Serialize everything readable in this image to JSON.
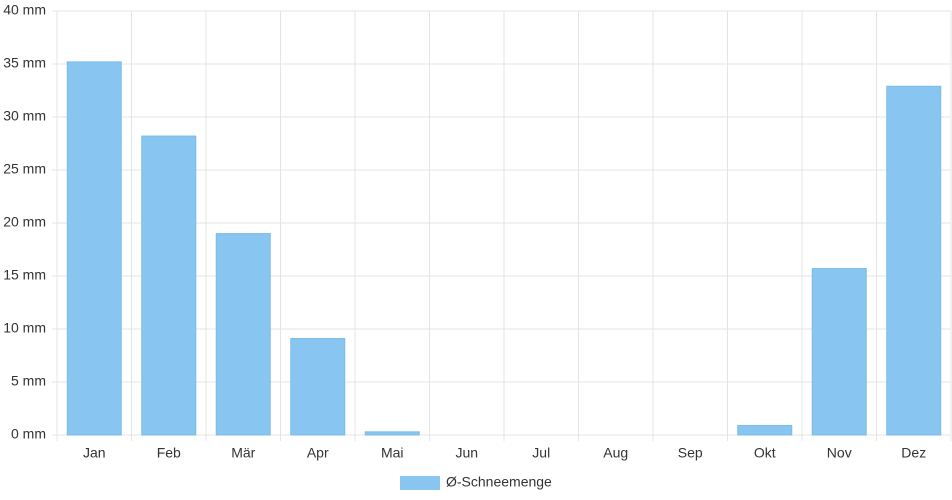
{
  "chart_data": {
    "type": "bar",
    "categories": [
      "Jan",
      "Feb",
      "Mär",
      "Apr",
      "Mai",
      "Jun",
      "Jul",
      "Aug",
      "Sep",
      "Okt",
      "Nov",
      "Dez"
    ],
    "series": [
      {
        "name": "Ø-Schneemenge",
        "color": "#88c6f1",
        "values": [
          35.2,
          28.2,
          19.0,
          9.1,
          0.3,
          0,
          0,
          0,
          0,
          0.9,
          15.7,
          32.9
        ]
      }
    ],
    "ylim": [
      0,
      40
    ],
    "yticks": [
      {
        "value": 0,
        "label": "0 mm"
      },
      {
        "value": 5,
        "label": "5 mm"
      },
      {
        "value": 10,
        "label": "10 mm"
      },
      {
        "value": 15,
        "label": "15 mm"
      },
      {
        "value": 20,
        "label": "20 mm"
      },
      {
        "value": 25,
        "label": "25 mm"
      },
      {
        "value": 30,
        "label": "30 mm"
      },
      {
        "value": 35,
        "label": "35 mm"
      },
      {
        "value": 40,
        "label": "40 mm"
      }
    ],
    "grid": true,
    "legend": "bottom"
  }
}
